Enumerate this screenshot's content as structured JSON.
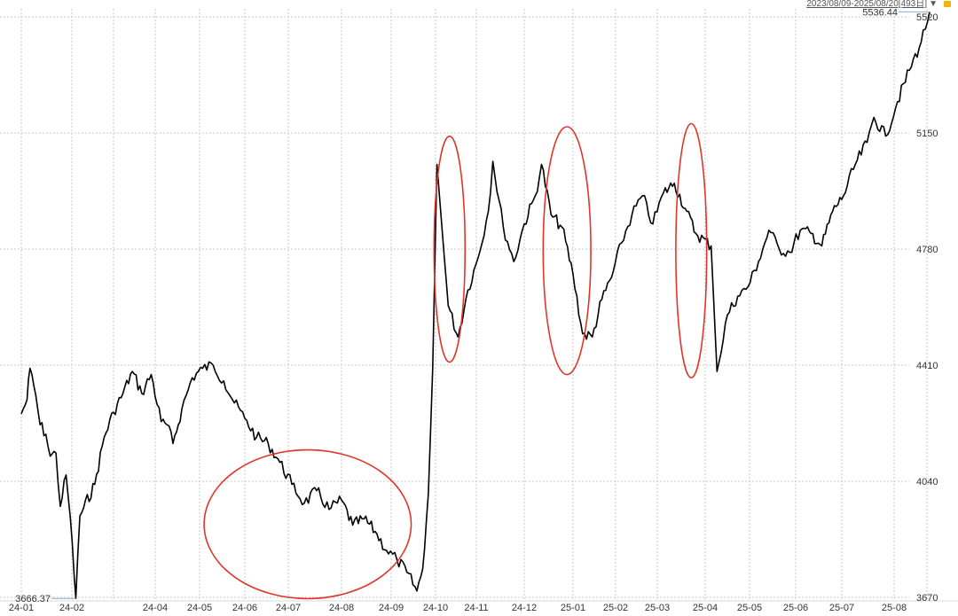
{
  "header": {
    "range_label": "2023/08/09-2025/08/20[493日]",
    "dropdown_glyph": "▼"
  },
  "colors": {
    "line": "#000000",
    "grid": "#c8c8c8",
    "annotation": "#e0352b",
    "max_label": "#e02020",
    "min_label": "#2a9a2a",
    "lock": "#f2b600"
  },
  "chart_data": {
    "type": "line",
    "title": "",
    "xlabel": "",
    "ylabel": "",
    "x_ticks": [
      "24-01",
      "24-02",
      "24-04",
      "24-05",
      "24-06",
      "24-07",
      "24-08",
      "24-09",
      "24-10",
      "24-11",
      "24-12",
      "25-01",
      "25-02",
      "25-03",
      "25-04",
      "25-05",
      "25-06",
      "25-07",
      "25-08"
    ],
    "y_ticks": [
      3670,
      4040,
      4410,
      4780,
      5150,
      5520
    ],
    "ylim": [
      3650,
      5560
    ],
    "grid": true,
    "max_label": "5536.44",
    "min_label": "3666.37",
    "series": [
      {
        "points": [
          [
            "2023-12-29",
            4255
          ],
          [
            "2024-01-02",
            4300
          ],
          [
            "2024-01-04",
            4400
          ],
          [
            "2024-01-08",
            4315
          ],
          [
            "2024-01-11",
            4220
          ],
          [
            "2024-01-15",
            4190
          ],
          [
            "2024-01-18",
            4120
          ],
          [
            "2024-01-22",
            4130
          ],
          [
            "2024-01-25",
            3960
          ],
          [
            "2024-01-29",
            4060
          ],
          [
            "2024-02-01",
            3920
          ],
          [
            "2024-02-05",
            3666.37
          ],
          [
            "2024-02-08",
            3930
          ],
          [
            "2024-02-19",
            4030
          ],
          [
            "2024-02-26",
            4180
          ],
          [
            "2024-03-04",
            4260
          ],
          [
            "2024-03-11",
            4320
          ],
          [
            "2024-03-18",
            4390
          ],
          [
            "2024-03-25",
            4320
          ],
          [
            "2024-04-01",
            4380
          ],
          [
            "2024-04-08",
            4230
          ],
          [
            "2024-04-12",
            4220
          ],
          [
            "2024-04-16",
            4160
          ],
          [
            "2024-04-22",
            4270
          ],
          [
            "2024-04-29",
            4370
          ],
          [
            "2024-05-06",
            4400
          ],
          [
            "2024-05-13",
            4410
          ],
          [
            "2024-05-20",
            4360
          ],
          [
            "2024-05-27",
            4290
          ],
          [
            "2024-06-03",
            4240
          ],
          [
            "2024-06-10",
            4180
          ],
          [
            "2024-06-17",
            4160
          ],
          [
            "2024-06-24",
            4100
          ],
          [
            "2024-07-01",
            4030
          ],
          [
            "2024-07-08",
            3970
          ],
          [
            "2024-07-15",
            4010
          ],
          [
            "2024-07-22",
            3950
          ],
          [
            "2024-07-29",
            3980
          ],
          [
            "2024-08-05",
            3900
          ],
          [
            "2024-08-12",
            3920
          ],
          [
            "2024-08-19",
            3880
          ],
          [
            "2024-08-26",
            3820
          ],
          [
            "2024-09-02",
            3790
          ],
          [
            "2024-09-09",
            3750
          ],
          [
            "2024-09-16",
            3690
          ],
          [
            "2024-09-20",
            3760
          ],
          [
            "2024-09-24",
            4000
          ],
          [
            "2024-09-27",
            4400
          ],
          [
            "2024-09-30",
            5050
          ],
          [
            "2024-10-08",
            4600
          ],
          [
            "2024-10-15",
            4500
          ],
          [
            "2024-10-22",
            4650
          ],
          [
            "2024-10-29",
            4750
          ],
          [
            "2024-11-05",
            4900
          ],
          [
            "2024-11-08",
            5060
          ],
          [
            "2024-11-15",
            4850
          ],
          [
            "2024-11-22",
            4740
          ],
          [
            "2024-11-29",
            4860
          ],
          [
            "2024-12-06",
            4950
          ],
          [
            "2024-12-10",
            5050
          ],
          [
            "2024-12-16",
            4890
          ],
          [
            "2024-12-23",
            4850
          ],
          [
            "2024-12-30",
            4700
          ],
          [
            "2025-01-06",
            4510
          ],
          [
            "2025-01-13",
            4500
          ],
          [
            "2025-01-20",
            4620
          ],
          [
            "2025-01-27",
            4690
          ],
          [
            "2025-02-03",
            4800
          ],
          [
            "2025-02-10",
            4890
          ],
          [
            "2025-02-17",
            4950
          ],
          [
            "2025-02-24",
            4860
          ],
          [
            "2025-03-03",
            4960
          ],
          [
            "2025-03-10",
            4990
          ],
          [
            "2025-03-17",
            4910
          ],
          [
            "2025-03-24",
            4830
          ],
          [
            "2025-04-03",
            4790
          ],
          [
            "2025-04-07",
            4390
          ],
          [
            "2025-04-14",
            4570
          ],
          [
            "2025-04-21",
            4630
          ],
          [
            "2025-04-28",
            4660
          ],
          [
            "2025-05-05",
            4740
          ],
          [
            "2025-05-12",
            4840
          ],
          [
            "2025-05-19",
            4780
          ],
          [
            "2025-05-26",
            4770
          ],
          [
            "2025-06-02",
            4840
          ],
          [
            "2025-06-09",
            4830
          ],
          [
            "2025-06-16",
            4790
          ],
          [
            "2025-06-23",
            4900
          ],
          [
            "2025-06-30",
            4950
          ],
          [
            "2025-07-07",
            5050
          ],
          [
            "2025-07-14",
            5120
          ],
          [
            "2025-07-18",
            5200
          ],
          [
            "2025-07-25",
            5140
          ],
          [
            "2025-08-01",
            5250
          ],
          [
            "2025-08-08",
            5350
          ],
          [
            "2025-08-15",
            5440
          ],
          [
            "2025-08-20",
            5536.44
          ]
        ]
      }
    ],
    "annotations": [
      {
        "shape": "ellipse",
        "x_range": [
          "2024-05-07",
          "2024-09-12"
        ],
        "y_range": [
          3666,
          4140
        ]
      },
      {
        "shape": "ellipse",
        "x_range": [
          "2024-09-28",
          "2024-10-20"
        ],
        "y_range": [
          4420,
          5140
        ]
      },
      {
        "shape": "ellipse",
        "x_range": [
          "2024-12-11",
          "2025-01-12"
        ],
        "y_range": [
          4380,
          5170
        ]
      },
      {
        "shape": "ellipse",
        "x_range": [
          "2025-03-11",
          "2025-03-31"
        ],
        "y_range": [
          4370,
          5180
        ]
      }
    ]
  }
}
